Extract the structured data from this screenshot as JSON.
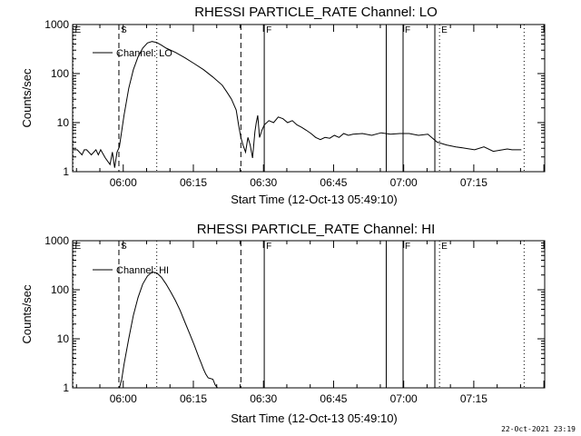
{
  "footer": {
    "timestamp": "22-Oct-2021 23:19"
  },
  "chart_data": [
    {
      "type": "line",
      "title": "RHESSI PARTICLE_RATE Channel: LO",
      "xlabel": "Start Time (12-Oct-13 05:49:10)",
      "ylabel": "Counts/sec",
      "yscale": "log",
      "ylim": [
        1,
        1000
      ],
      "xlim_minutes": [
        0,
        101
      ],
      "xticks": [
        {
          "label": "06:00",
          "min": 10.83
        },
        {
          "label": "06:15",
          "min": 25.83
        },
        {
          "label": "06:30",
          "min": 40.83
        },
        {
          "label": "06:45",
          "min": 55.83
        },
        {
          "label": "07:00",
          "min": 70.83
        },
        {
          "label": "07:15",
          "min": 85.83
        }
      ],
      "yticks": [
        {
          "label": "1",
          "v": 1
        },
        {
          "label": "10",
          "v": 10
        },
        {
          "label": "100",
          "v": 100
        },
        {
          "label": "1000",
          "v": 1000
        }
      ],
      "legend": {
        "label": "Channel: LO",
        "position": "top-left"
      },
      "markers": [
        {
          "min": 0.1,
          "style": "dotted",
          "label": "E"
        },
        {
          "min": 9.9,
          "style": "dashed",
          "label": "S"
        },
        {
          "min": 18.0,
          "style": "dotted",
          "label": ""
        },
        {
          "min": 36.0,
          "style": "dashed",
          "label": ""
        },
        {
          "min": 41.0,
          "style": "solid",
          "label": "F"
        },
        {
          "min": 67.1,
          "style": "solid",
          "label": ""
        },
        {
          "min": 70.7,
          "style": "solid",
          "label": "F"
        },
        {
          "min": 77.5,
          "style": "solid",
          "label": ""
        },
        {
          "min": 78.5,
          "style": "dotted",
          "label": "E"
        },
        {
          "min": 96.6,
          "style": "dotted",
          "label": ""
        }
      ],
      "series": [
        {
          "name": "Channel: LO",
          "x": [
            0,
            1,
            2,
            2.5,
            3,
            4,
            5,
            5.5,
            6,
            7,
            8,
            8.5,
            9,
            9.5,
            10,
            11,
            12,
            13,
            14,
            15,
            16,
            17,
            18,
            19,
            20,
            22,
            24,
            26,
            28,
            30,
            32,
            33,
            34,
            35,
            35.5,
            36,
            36.5,
            37,
            37.5,
            38,
            38.5,
            39,
            39.3,
            39.6,
            40,
            40.5,
            41,
            42,
            43,
            44,
            45,
            46,
            47,
            48,
            49,
            50,
            51,
            52,
            53,
            54,
            55,
            56,
            57,
            58,
            59,
            60,
            62,
            64,
            66,
            68,
            70,
            72,
            74,
            76,
            78,
            80,
            82,
            84,
            86,
            88,
            90,
            92,
            93,
            94,
            96
          ],
          "y": [
            2.8,
            2.8,
            2.2,
            2.8,
            2.8,
            2.2,
            2.8,
            2.2,
            2.8,
            1.9,
            1.4,
            2.5,
            1.2,
            2.5,
            3.2,
            14,
            50,
            120,
            220,
            330,
            420,
            450,
            430,
            380,
            330,
            270,
            210,
            160,
            120,
            85,
            58,
            42,
            30,
            18,
            9,
            5,
            3.4,
            2.5,
            5,
            3.5,
            1.9,
            6.5,
            10,
            14,
            5,
            7,
            9,
            11,
            10,
            13,
            12,
            10,
            11,
            9,
            8,
            7,
            6,
            5,
            4.5,
            5,
            4.8,
            5.5,
            5,
            6,
            5.5,
            5.8,
            6,
            5.5,
            6.2,
            5.8,
            6,
            6,
            5.5,
            5.8,
            4,
            3.5,
            3.2,
            3,
            2.8,
            3.2,
            2.6,
            2.8,
            2.9,
            2.8,
            2.8
          ]
        }
      ]
    },
    {
      "type": "line",
      "title": "RHESSI PARTICLE_RATE Channel: HI",
      "xlabel": "Start Time (12-Oct-13 05:49:10)",
      "ylabel": "Counts/sec",
      "yscale": "log",
      "ylim": [
        1,
        1000
      ],
      "xlim_minutes": [
        0,
        101
      ],
      "xticks": [
        {
          "label": "06:00",
          "min": 10.83
        },
        {
          "label": "06:15",
          "min": 25.83
        },
        {
          "label": "06:30",
          "min": 40.83
        },
        {
          "label": "06:45",
          "min": 55.83
        },
        {
          "label": "07:00",
          "min": 70.83
        },
        {
          "label": "07:15",
          "min": 85.83
        }
      ],
      "yticks": [
        {
          "label": "1",
          "v": 1
        },
        {
          "label": "10",
          "v": 10
        },
        {
          "label": "100",
          "v": 100
        },
        {
          "label": "1000",
          "v": 1000
        }
      ],
      "legend": {
        "label": "Channel: HI",
        "position": "top-left"
      },
      "markers": [
        {
          "min": 0.1,
          "style": "dotted",
          "label": "E"
        },
        {
          "min": 9.9,
          "style": "dashed",
          "label": "S"
        },
        {
          "min": 18.0,
          "style": "dotted",
          "label": ""
        },
        {
          "min": 36.0,
          "style": "dashed",
          "label": ""
        },
        {
          "min": 41.0,
          "style": "solid",
          "label": "F"
        },
        {
          "min": 67.1,
          "style": "solid",
          "label": ""
        },
        {
          "min": 70.7,
          "style": "solid",
          "label": "F"
        },
        {
          "min": 77.5,
          "style": "solid",
          "label": ""
        },
        {
          "min": 78.5,
          "style": "dotted",
          "label": "E"
        },
        {
          "min": 96.6,
          "style": "dotted",
          "label": ""
        }
      ],
      "series": [
        {
          "name": "Channel: HI",
          "x": [
            10,
            10.5,
            11,
            12,
            13,
            14,
            15,
            16,
            17,
            18,
            19,
            20,
            21,
            22,
            23,
            24,
            25,
            26,
            27,
            27.5,
            28,
            28.5,
            29,
            30,
            30.5,
            31
          ],
          "y": [
            1.0,
            1.5,
            3,
            10,
            30,
            70,
            130,
            190,
            230,
            220,
            180,
            130,
            90,
            60,
            38,
            22,
            13,
            7.5,
            4.2,
            3.2,
            2.4,
            1.9,
            1.6,
            1.5,
            1.15,
            1.0
          ]
        }
      ]
    }
  ]
}
